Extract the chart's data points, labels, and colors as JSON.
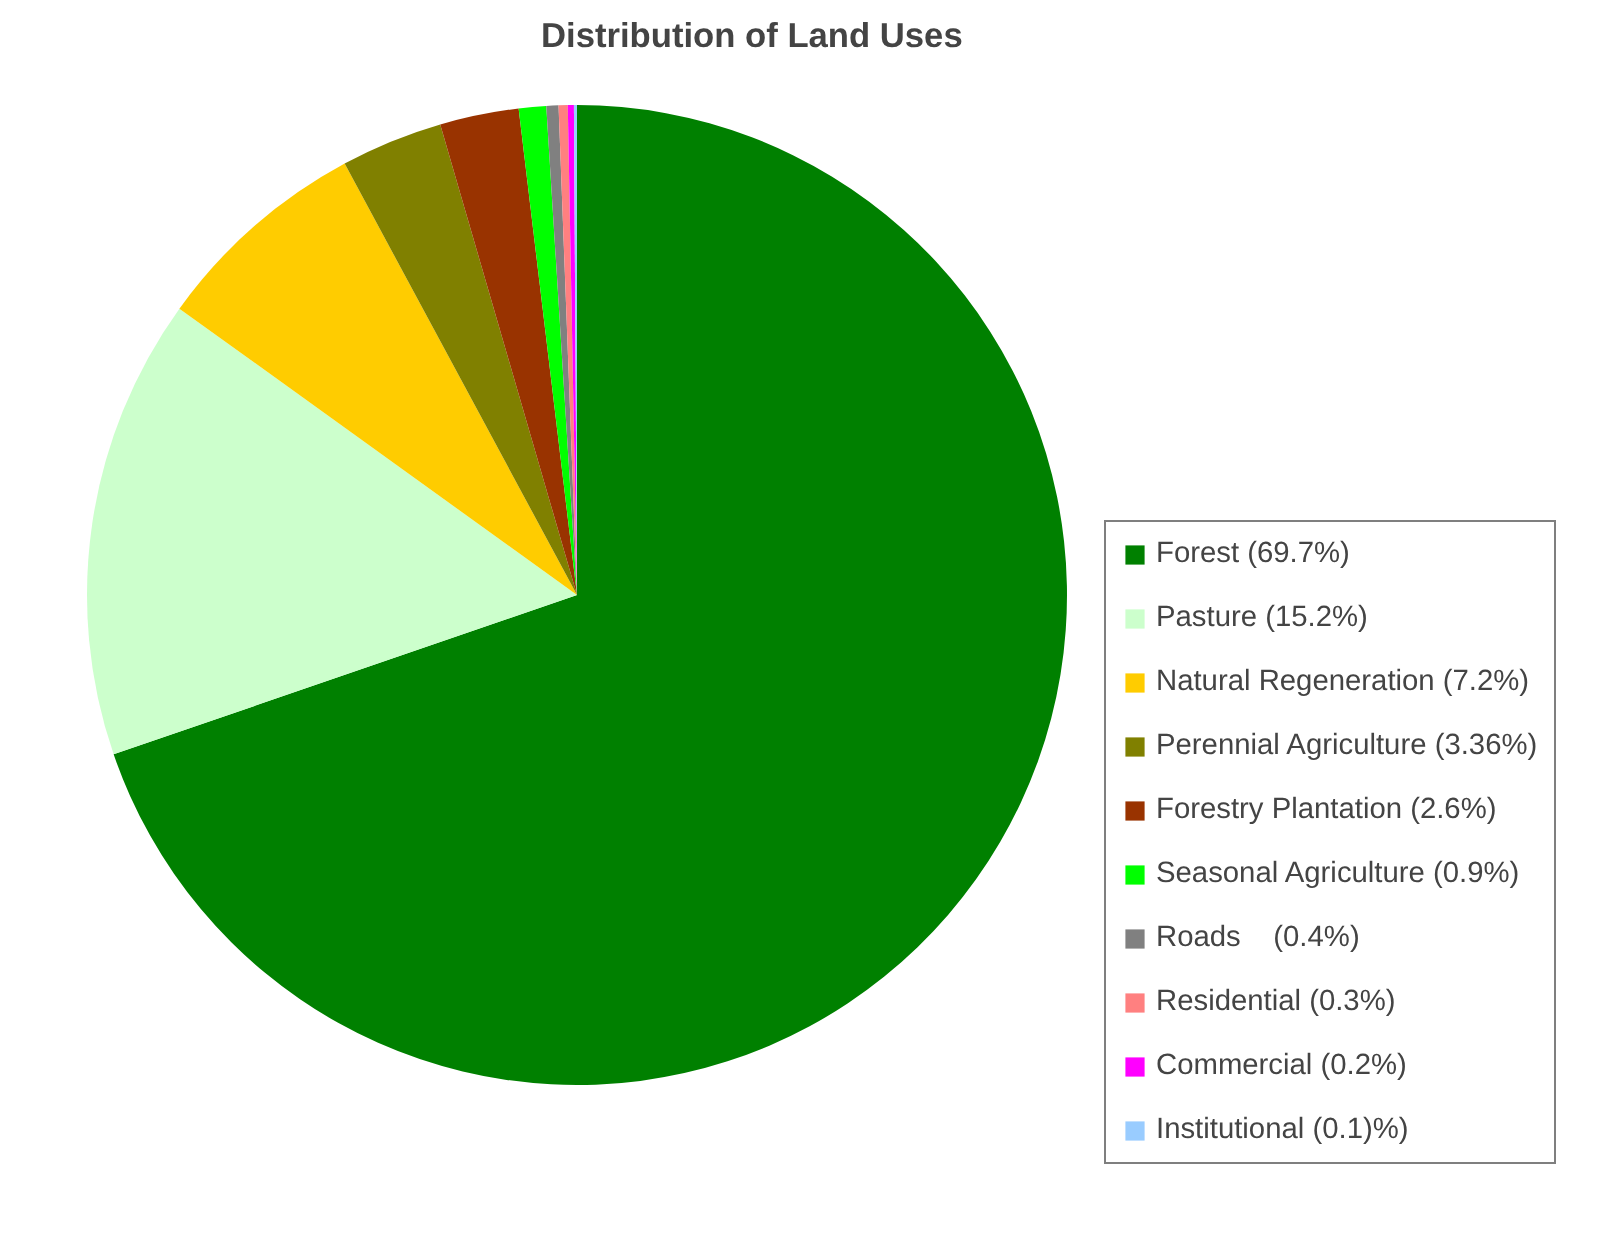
{
  "chart_data": {
    "type": "pie",
    "title": "Distribution of Land Uses",
    "categories": [
      "Forest (69.7%)",
      "Pasture (15.2%)",
      "Natural Regeneration (7.2%)",
      "Perennial Agriculture (3.36%)",
      "Forestry Plantation (2.6%)",
      "Seasonal Agriculture (0.9%)",
      "Roads    (0.4%)",
      "Residential (0.3%)",
      "Commercial (0.2%)",
      "Institutional (0.1)%)"
    ],
    "values": [
      69.7,
      15.2,
      7.2,
      3.36,
      2.6,
      0.9,
      0.4,
      0.3,
      0.2,
      0.1
    ],
    "colors": [
      "#008000",
      "#ccffcc",
      "#ffcc00",
      "#808000",
      "#993300",
      "#00ff00",
      "#808080",
      "#ff8080",
      "#ff00ff",
      "#99ccff"
    ],
    "legend": "right"
  }
}
